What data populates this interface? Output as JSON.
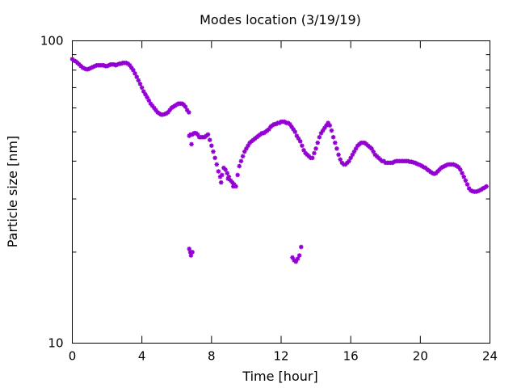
{
  "chart_data": {
    "type": "scatter",
    "title": "Modes location (3/19/19)",
    "xlabel": "Time [hour]",
    "ylabel": "Particle size [nm]",
    "xlim": [
      0,
      24
    ],
    "ylim": [
      10,
      100
    ],
    "yscale": "log",
    "x_ticks": [
      0,
      4,
      8,
      12,
      16,
      20,
      24
    ],
    "x_tick_labels": [
      "0",
      "4",
      "8",
      "12",
      "16",
      "20",
      "24"
    ],
    "y_major_ticks": [
      10,
      100
    ],
    "y_tick_labels": [
      "10",
      "100"
    ],
    "y_minor_ticks": [
      20,
      30,
      40,
      50,
      60,
      70,
      80,
      90
    ],
    "x_minor_ticks": [],
    "grid": false,
    "marker": "asterisk",
    "series": [
      {
        "color": "#9400d3",
        "points": [
          [
            0.0,
            87
          ],
          [
            0.1,
            86
          ],
          [
            0.2,
            85.5
          ],
          [
            0.3,
            84.5
          ],
          [
            0.4,
            83.5
          ],
          [
            0.5,
            82.5
          ],
          [
            0.6,
            81.5
          ],
          [
            0.7,
            81
          ],
          [
            0.8,
            80.5
          ],
          [
            0.9,
            80.5
          ],
          [
            1.0,
            81
          ],
          [
            1.1,
            81.5
          ],
          [
            1.2,
            82
          ],
          [
            1.3,
            82.5
          ],
          [
            1.4,
            83
          ],
          [
            1.5,
            83
          ],
          [
            1.6,
            83
          ],
          [
            1.7,
            83
          ],
          [
            1.8,
            83
          ],
          [
            1.9,
            82.5
          ],
          [
            2.0,
            82.5
          ],
          [
            2.1,
            83
          ],
          [
            2.2,
            83.5
          ],
          [
            2.3,
            83.5
          ],
          [
            2.4,
            83.5
          ],
          [
            2.5,
            83
          ],
          [
            2.6,
            83.5
          ],
          [
            2.7,
            84
          ],
          [
            2.8,
            84
          ],
          [
            2.9,
            84.5
          ],
          [
            3.0,
            84.5
          ],
          [
            3.1,
            84.5
          ],
          [
            3.2,
            84
          ],
          [
            3.3,
            83
          ],
          [
            3.4,
            81.5
          ],
          [
            3.5,
            80
          ],
          [
            3.6,
            78
          ],
          [
            3.7,
            76
          ],
          [
            3.8,
            74
          ],
          [
            3.9,
            72
          ],
          [
            4.0,
            70
          ],
          [
            4.1,
            68
          ],
          [
            4.2,
            66.5
          ],
          [
            4.3,
            65
          ],
          [
            4.4,
            63.5
          ],
          [
            4.5,
            62
          ],
          [
            4.6,
            61
          ],
          [
            4.7,
            60
          ],
          [
            4.8,
            59
          ],
          [
            4.9,
            58
          ],
          [
            5.0,
            57.5
          ],
          [
            5.1,
            57
          ],
          [
            5.2,
            57
          ],
          [
            5.3,
            57.2
          ],
          [
            5.4,
            57.5
          ],
          [
            5.5,
            58
          ],
          [
            5.6,
            59
          ],
          [
            5.7,
            60
          ],
          [
            5.8,
            60.5
          ],
          [
            5.9,
            61
          ],
          [
            6.0,
            61.5
          ],
          [
            6.1,
            62
          ],
          [
            6.2,
            62
          ],
          [
            6.3,
            62
          ],
          [
            6.4,
            61.5
          ],
          [
            6.5,
            60.5
          ],
          [
            6.6,
            59
          ],
          [
            6.7,
            58
          ],
          [
            6.72,
            48.5
          ],
          [
            6.8,
            49
          ],
          [
            6.85,
            45.5
          ],
          [
            6.9,
            49
          ],
          [
            7.0,
            49.5
          ],
          [
            7.1,
            49.5
          ],
          [
            7.2,
            49
          ],
          [
            7.3,
            48
          ],
          [
            7.4,
            48
          ],
          [
            7.5,
            48
          ],
          [
            7.6,
            48
          ],
          [
            7.7,
            48.5
          ],
          [
            7.8,
            49
          ],
          [
            7.9,
            47
          ],
          [
            8.0,
            45
          ],
          [
            8.1,
            43
          ],
          [
            8.2,
            41
          ],
          [
            8.3,
            39
          ],
          [
            8.4,
            37
          ],
          [
            8.5,
            35.5
          ],
          [
            8.6,
            36
          ],
          [
            8.7,
            38
          ],
          [
            8.8,
            37.5
          ],
          [
            8.9,
            36.5
          ],
          [
            9.0,
            35.5
          ],
          [
            9.1,
            34.5
          ],
          [
            9.2,
            34
          ],
          [
            9.3,
            33.5
          ],
          [
            9.4,
            33
          ],
          [
            8.55,
            34
          ],
          [
            8.95,
            35
          ],
          [
            9.25,
            33
          ],
          [
            9.5,
            36
          ],
          [
            9.6,
            38.5
          ],
          [
            9.7,
            40
          ],
          [
            9.8,
            41.5
          ],
          [
            9.9,
            43
          ],
          [
            10.0,
            44
          ],
          [
            10.1,
            45
          ],
          [
            10.2,
            46
          ],
          [
            10.3,
            46.5
          ],
          [
            10.4,
            47
          ],
          [
            10.5,
            47.5
          ],
          [
            10.6,
            48
          ],
          [
            10.7,
            48.5
          ],
          [
            10.8,
            49
          ],
          [
            10.9,
            49.5
          ],
          [
            11.0,
            49.5
          ],
          [
            11.1,
            50
          ],
          [
            11.2,
            50.5
          ],
          [
            11.3,
            51
          ],
          [
            11.4,
            52
          ],
          [
            11.5,
            52.5
          ],
          [
            11.6,
            53
          ],
          [
            11.7,
            53
          ],
          [
            11.8,
            53.5
          ],
          [
            11.9,
            53.5
          ],
          [
            12.0,
            54
          ],
          [
            12.1,
            54
          ],
          [
            12.2,
            54
          ],
          [
            12.3,
            53.5
          ],
          [
            12.4,
            53.5
          ],
          [
            12.5,
            53
          ],
          [
            12.6,
            52
          ],
          [
            12.7,
            51
          ],
          [
            12.8,
            50
          ],
          [
            12.9,
            48.5
          ],
          [
            13.0,
            47.5
          ],
          [
            13.1,
            46.5
          ],
          [
            13.2,
            45
          ],
          [
            13.3,
            43.5
          ],
          [
            13.4,
            42.5
          ],
          [
            13.5,
            42
          ],
          [
            13.6,
            41.5
          ],
          [
            13.7,
            41
          ],
          [
            13.8,
            41
          ],
          [
            13.9,
            42.5
          ],
          [
            14.0,
            44
          ],
          [
            14.1,
            46
          ],
          [
            14.2,
            48
          ],
          [
            14.3,
            49.5
          ],
          [
            14.4,
            50.5
          ],
          [
            14.5,
            51.5
          ],
          [
            14.6,
            52.5
          ],
          [
            14.7,
            53.5
          ],
          [
            14.8,
            52.5
          ],
          [
            14.9,
            50.5
          ],
          [
            15.0,
            48
          ],
          [
            15.1,
            46
          ],
          [
            15.2,
            44
          ],
          [
            15.3,
            42
          ],
          [
            15.4,
            40.5
          ],
          [
            15.5,
            39.5
          ],
          [
            15.6,
            39
          ],
          [
            15.7,
            39
          ],
          [
            15.8,
            39.5
          ],
          [
            15.9,
            40
          ],
          [
            16.0,
            41
          ],
          [
            16.1,
            42
          ],
          [
            16.2,
            43
          ],
          [
            16.3,
            44
          ],
          [
            16.4,
            45
          ],
          [
            16.5,
            45.5
          ],
          [
            16.6,
            46
          ],
          [
            16.7,
            46
          ],
          [
            16.8,
            46
          ],
          [
            16.9,
            45.5
          ],
          [
            17.0,
            45
          ],
          [
            17.1,
            44.5
          ],
          [
            17.2,
            44
          ],
          [
            17.3,
            43
          ],
          [
            17.4,
            42
          ],
          [
            17.5,
            41.5
          ],
          [
            17.6,
            41
          ],
          [
            17.7,
            40.5
          ],
          [
            17.8,
            40
          ],
          [
            17.9,
            40
          ],
          [
            18.0,
            39.5
          ],
          [
            18.1,
            39.5
          ],
          [
            18.2,
            39.5
          ],
          [
            18.3,
            39.5
          ],
          [
            18.4,
            39.5
          ],
          [
            18.5,
            39.8
          ],
          [
            18.6,
            40
          ],
          [
            18.7,
            40
          ],
          [
            18.8,
            40
          ],
          [
            18.9,
            40
          ],
          [
            19.0,
            40
          ],
          [
            19.1,
            40
          ],
          [
            19.2,
            40
          ],
          [
            19.3,
            40
          ],
          [
            19.4,
            39.8
          ],
          [
            19.5,
            39.8
          ],
          [
            19.6,
            39.6
          ],
          [
            19.7,
            39.5
          ],
          [
            19.8,
            39.2
          ],
          [
            19.9,
            39
          ],
          [
            20.0,
            38.8
          ],
          [
            20.1,
            38.5
          ],
          [
            20.2,
            38.2
          ],
          [
            20.3,
            38
          ],
          [
            20.4,
            37.5
          ],
          [
            20.5,
            37.2
          ],
          [
            20.6,
            36.8
          ],
          [
            20.7,
            36.5
          ],
          [
            20.8,
            36.3
          ],
          [
            20.9,
            36.5
          ],
          [
            21.0,
            37
          ],
          [
            21.1,
            37.5
          ],
          [
            21.2,
            38
          ],
          [
            21.3,
            38.3
          ],
          [
            21.4,
            38.5
          ],
          [
            21.5,
            38.8
          ],
          [
            21.6,
            39
          ],
          [
            21.7,
            39
          ],
          [
            21.8,
            39
          ],
          [
            21.9,
            39
          ],
          [
            22.0,
            38.8
          ],
          [
            22.1,
            38.5
          ],
          [
            22.2,
            38.2
          ],
          [
            22.3,
            37.5
          ],
          [
            22.4,
            36.5
          ],
          [
            22.5,
            35.5
          ],
          [
            22.6,
            34.5
          ],
          [
            22.7,
            33.5
          ],
          [
            22.8,
            32.5
          ],
          [
            22.9,
            32
          ],
          [
            23.0,
            31.8
          ],
          [
            23.1,
            31.7
          ],
          [
            23.2,
            31.7
          ],
          [
            23.3,
            31.8
          ],
          [
            23.4,
            32
          ],
          [
            23.5,
            32.2
          ],
          [
            23.6,
            32.5
          ],
          [
            23.7,
            32.7
          ],
          [
            23.8,
            33
          ],
          [
            6.72,
            20.5
          ],
          [
            6.78,
            20
          ],
          [
            6.82,
            19.5
          ],
          [
            6.9,
            20
          ],
          [
            12.65,
            19.2
          ],
          [
            12.75,
            18.8
          ],
          [
            12.85,
            18.6
          ],
          [
            12.95,
            19
          ],
          [
            13.05,
            19.5
          ],
          [
            13.15,
            20.8
          ]
        ]
      }
    ]
  }
}
